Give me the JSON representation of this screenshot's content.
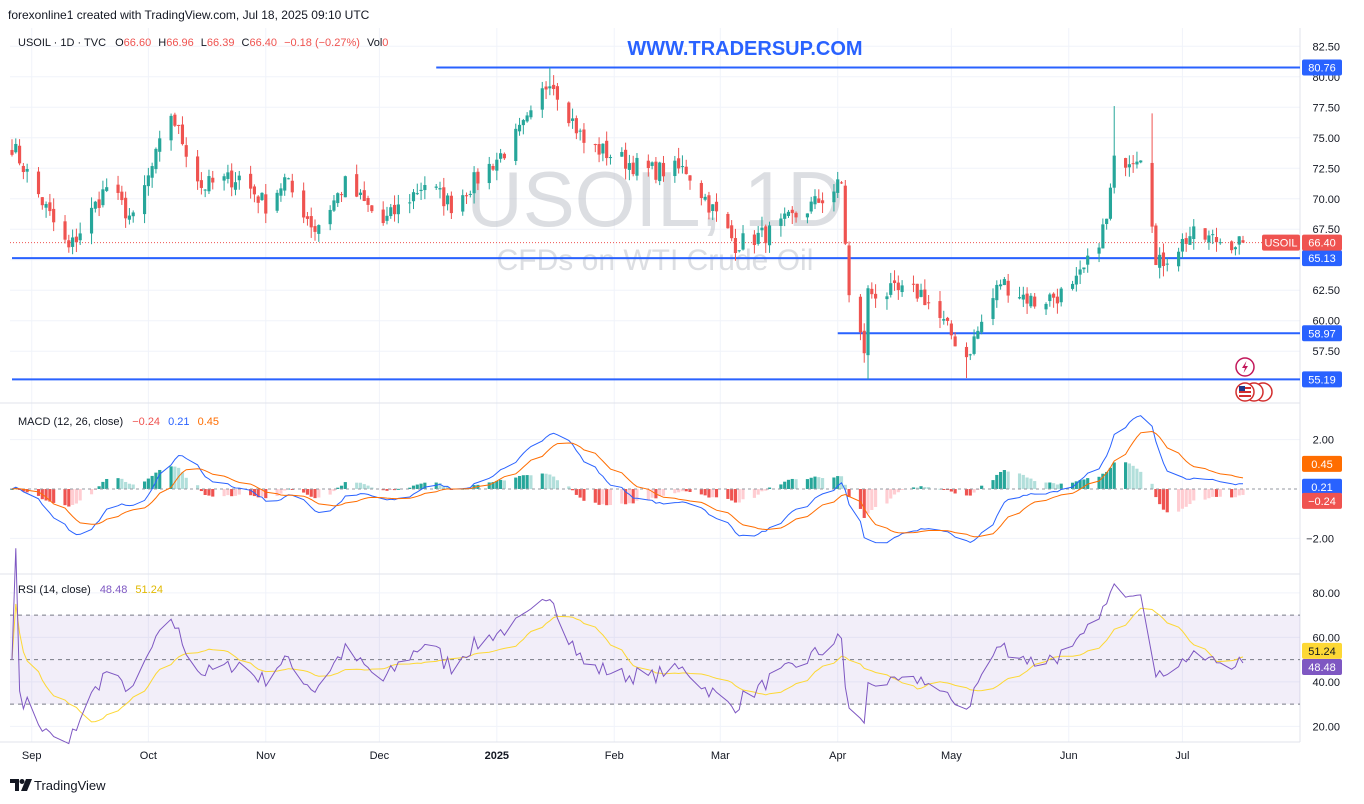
{
  "header": {
    "attribution": "forexonline1 created with TradingView.com, Jul 18, 2025 09:10 UTC"
  },
  "watermark": {
    "url": "WWW.TRADERSUP.COM",
    "symbol": "USOIL, 1D",
    "description": "CFDs on WTI Crude Oil"
  },
  "legend": {
    "symbol": "USOIL · 1D · TVC",
    "o_label": "O",
    "o_value": "66.60",
    "h_label": "H",
    "h_value": "66.96",
    "l_label": "L",
    "l_value": "66.39",
    "c_label": "C",
    "c_value": "66.40",
    "change": "−0.18 (−0.27%)",
    "vol_label": "Vol",
    "vol_value": "0"
  },
  "macd_legend": {
    "title": "MACD (12, 26, close)",
    "hist": "−0.24",
    "macd": "0.21",
    "signal": "0.45"
  },
  "rsi_legend": {
    "title": "RSI (14, close)",
    "rsi": "48.48",
    "ma": "51.24"
  },
  "footer": {
    "brand": "TradingView"
  },
  "colors": {
    "up": "#26a69a",
    "down": "#ef5350",
    "level": "#2962ff",
    "macd": "#2962ff",
    "signal": "#ff6d00",
    "rsi": "#7e57c2",
    "rsi_ma": "#fdd835",
    "watermark_url": "#2962ff"
  },
  "chart_data": [
    {
      "type": "candlestick",
      "symbol": "USOIL",
      "timeframe": "1D",
      "y_ticks": [
        57.5,
        60.0,
        62.5,
        65.0,
        67.5,
        70.0,
        72.5,
        75.0,
        77.5,
        80.0,
        82.5
      ],
      "y_tick_labels": [
        "57.50",
        "60.00",
        "62.50",
        "65.00",
        "67.50",
        "70.00",
        "72.50",
        "75.00",
        "77.50",
        "80.00",
        "82.50"
      ],
      "x_tick_labels": [
        "Sep",
        "Oct",
        "Nov",
        "Dec",
        "2025",
        "Feb",
        "Mar",
        "Apr",
        "May",
        "Jun",
        "Jul"
      ],
      "ylim": [
        53.5,
        84.0
      ],
      "levels": [
        {
          "value": 80.76,
          "label": "80.76",
          "from": "2024-12-16"
        },
        {
          "value": 65.13,
          "label": "65.13",
          "from": "2024-08-26"
        },
        {
          "value": 58.97,
          "label": "58.97",
          "from": "2025-04-01"
        },
        {
          "value": 55.19,
          "label": "55.19",
          "from": "2024-08-26"
        }
      ],
      "last_price": {
        "value": 66.4,
        "label": "66.40",
        "tag": "USOIL"
      },
      "anchors": [
        [
          "2024-08-26",
          74.4
        ],
        [
          "2024-09-06",
          68.0
        ],
        [
          "2024-09-10",
          65.8
        ],
        [
          "2024-09-20",
          71.0
        ],
        [
          "2024-09-27",
          68.2
        ],
        [
          "2024-10-04",
          74.3
        ],
        [
          "2024-10-07",
          77.0
        ],
        [
          "2024-10-15",
          71.0
        ],
        [
          "2024-10-25",
          71.8
        ],
        [
          "2024-11-01",
          69.5
        ],
        [
          "2024-11-06",
          71.5
        ],
        [
          "2024-11-14",
          67.5
        ],
        [
          "2024-11-22",
          71.2
        ],
        [
          "2024-12-02",
          68.0
        ],
        [
          "2024-12-13",
          71.3
        ],
        [
          "2024-12-20",
          69.5
        ],
        [
          "2025-01-03",
          73.9
        ],
        [
          "2025-01-10",
          76.6
        ],
        [
          "2025-01-15",
          80.0
        ],
        [
          "2025-01-24",
          74.6
        ],
        [
          "2025-02-03",
          73.2
        ],
        [
          "2025-02-10",
          72.3
        ],
        [
          "2025-02-20",
          72.4
        ],
        [
          "2025-03-05",
          66.3
        ],
        [
          "2025-03-14",
          67.2
        ],
        [
          "2025-03-26",
          69.6
        ],
        [
          "2025-04-02",
          71.2
        ],
        [
          "2025-04-04",
          61.9
        ],
        [
          "2025-04-08",
          57.6
        ],
        [
          "2025-04-09",
          62.3
        ],
        [
          "2025-04-23",
          62.3
        ],
        [
          "2025-05-05",
          57.1
        ],
        [
          "2025-05-14",
          63.2
        ],
        [
          "2025-05-23",
          61.5
        ],
        [
          "2025-06-02",
          62.5
        ],
        [
          "2025-06-06",
          64.6
        ],
        [
          "2025-06-11",
          68.2
        ],
        [
          "2025-06-13",
          72.9
        ],
        [
          "2025-06-20",
          73.8
        ],
        [
          "2025-06-23",
          68.5
        ],
        [
          "2025-06-24",
          64.4
        ],
        [
          "2025-07-03",
          67.0
        ],
        [
          "2025-07-10",
          66.6
        ],
        [
          "2025-07-17",
          66.4
        ]
      ]
    },
    {
      "type": "macd",
      "params": "12, 26, close",
      "y_ticks": [
        2.0,
        -2.0
      ],
      "y_tick_labels": [
        "2.00",
        "−2.00"
      ],
      "last": {
        "histogram": -0.24,
        "macd": 0.21,
        "signal": 0.45
      },
      "histogram_labels": [
        "0.45",
        "0.21",
        "−0.24"
      ]
    },
    {
      "type": "rsi",
      "params": "14, close",
      "y_ticks": [
        20,
        40,
        60,
        80
      ],
      "y_tick_labels": [
        "20.00",
        "40.00",
        "60.00",
        "80.00"
      ],
      "bands": [
        30,
        70
      ],
      "last": {
        "rsi": 48.48,
        "ma": 51.24
      }
    }
  ]
}
